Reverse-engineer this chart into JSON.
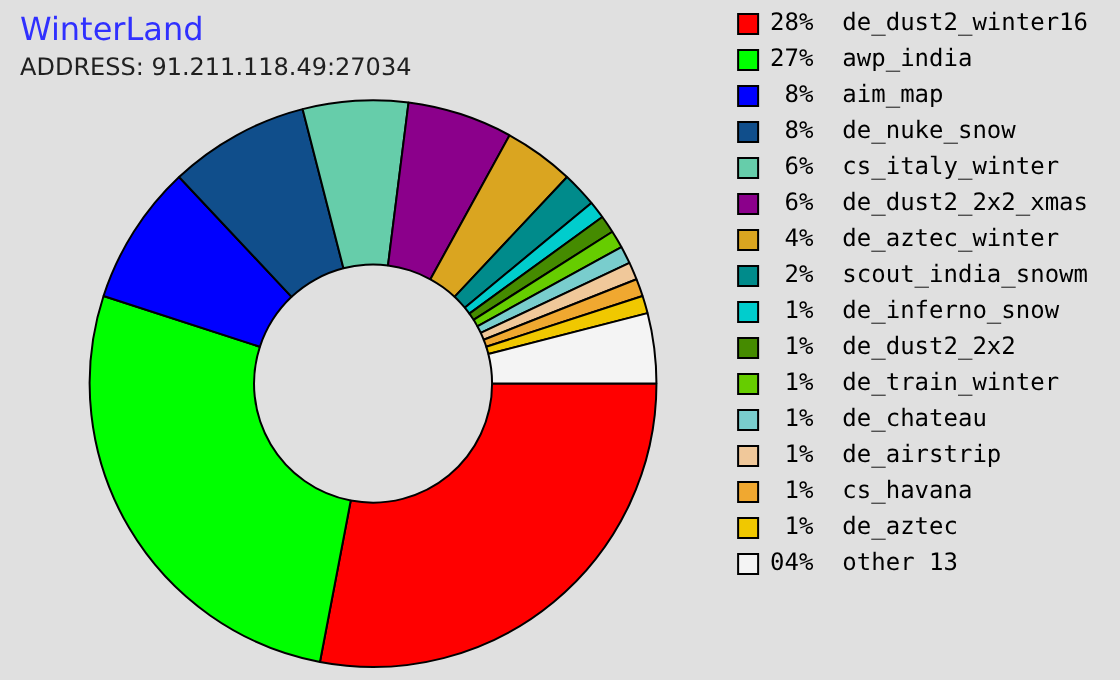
{
  "chart_data": {
    "type": "donut",
    "title": "WinterLand",
    "subtitle": "ADDRESS: 91.211.118.49:27034",
    "categories": [
      "de_dust2_winter16",
      "awp_india",
      "aim_map",
      "de_nuke_snow",
      "cs_italy_winter",
      "de_dust2_2x2_xmas",
      "de_aztec_winter",
      "scout_india_snowm",
      "de_inferno_snow",
      "de_dust2_2x2",
      "de_train_winter",
      "de_chateau",
      "de_airstrip",
      "cs_havana",
      "de_aztec",
      "other 13"
    ],
    "values": [
      28,
      27,
      8,
      8,
      6,
      6,
      4,
      2,
      1,
      1,
      1,
      1,
      1,
      1,
      1,
      4
    ],
    "value_labels": [
      "28%",
      "27%",
      "8%",
      "8%",
      "6%",
      "6%",
      "4%",
      "2%",
      "1%",
      "1%",
      "1%",
      "1%",
      "1%",
      "1%",
      "1%",
      "04%"
    ],
    "colors": [
      "#ff0000",
      "#00ff00",
      "#0000ff",
      "#104e8b",
      "#66cdaa",
      "#8b008b",
      "#daa520",
      "#008b8b",
      "#00cdcd",
      "#458b00",
      "#66cd00",
      "#79cdcd",
      "#f0c89a",
      "#f0a830",
      "#f0c800",
      "#f4f4f4"
    ],
    "legend": "right"
  }
}
